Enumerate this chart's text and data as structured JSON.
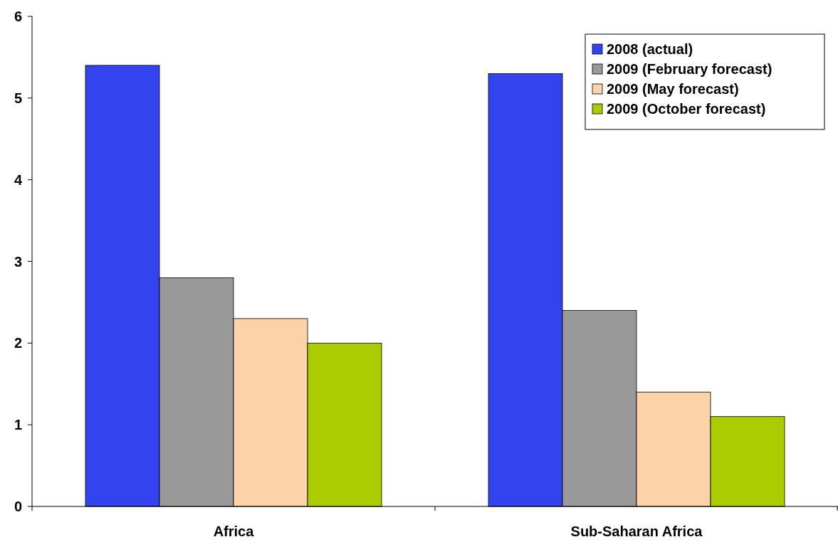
{
  "chart_data": {
    "type": "bar",
    "categories": [
      "Africa",
      "Sub-Saharan Africa"
    ],
    "series": [
      {
        "name": "2008 (actual)",
        "color": "#3344ee",
        "values": [
          5.4,
          5.3
        ]
      },
      {
        "name": "2009 (February forecast)",
        "color": "#999999",
        "values": [
          2.8,
          2.4
        ]
      },
      {
        "name": "2009 (May forecast)",
        "color": "#fcd2a8",
        "values": [
          2.3,
          1.4
        ]
      },
      {
        "name": "2009 (October forecast)",
        "color": "#aacc00",
        "values": [
          2.0,
          1.1
        ]
      }
    ],
    "ylim": [
      0,
      6
    ],
    "yticks": [
      0,
      1,
      2,
      3,
      4,
      5,
      6
    ],
    "legend": "top right"
  }
}
